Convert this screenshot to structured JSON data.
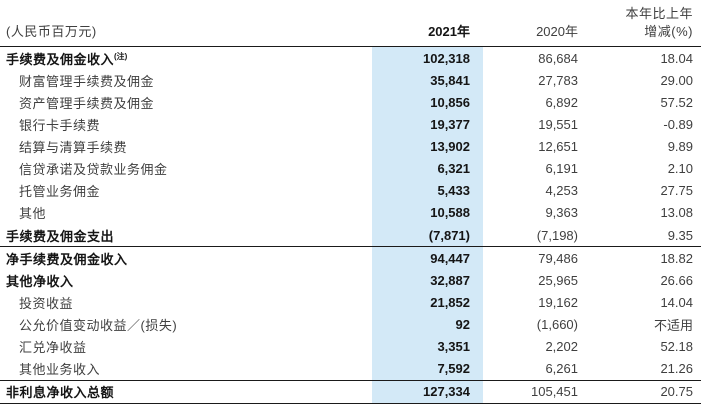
{
  "page": {
    "unit_label": "(人民币百万元)",
    "header": {
      "change_col_line1": "本年比上年",
      "change_col_line2": "增减(%)",
      "col_2021": "2021年",
      "col_2020": "2020年"
    },
    "colors": {
      "highlight_blue": "#d3e9f7",
      "rule_black": "#1a1a1a",
      "text_regular": "#3f3f3f",
      "text_bold": "#151515"
    },
    "table": {
      "rows": [
        {
          "label": "手续费及佣金收入",
          "note": "(注)",
          "bold": true,
          "indent": false,
          "v2021": "102,318",
          "v2020": "86,684",
          "change": "18.04",
          "rule_after": false
        },
        {
          "label": "财富管理手续费及佣金",
          "bold": false,
          "indent": true,
          "v2021": "35,841",
          "v2020": "27,783",
          "change": "29.00",
          "rule_after": false
        },
        {
          "label": "资产管理手续费及佣金",
          "bold": false,
          "indent": true,
          "v2021": "10,856",
          "v2020": "6,892",
          "change": "57.52",
          "rule_after": false
        },
        {
          "label": "银行卡手续费",
          "bold": false,
          "indent": true,
          "v2021": "19,377",
          "v2020": "19,551",
          "change": "-0.89",
          "rule_after": false
        },
        {
          "label": "结算与清算手续费",
          "bold": false,
          "indent": true,
          "v2021": "13,902",
          "v2020": "12,651",
          "change": "9.89",
          "rule_after": false
        },
        {
          "label": "信贷承诺及贷款业务佣金",
          "bold": false,
          "indent": true,
          "v2021": "6,321",
          "v2020": "6,191",
          "change": "2.10",
          "rule_after": false
        },
        {
          "label": "托管业务佣金",
          "bold": false,
          "indent": true,
          "v2021": "5,433",
          "v2020": "4,253",
          "change": "27.75",
          "rule_after": false
        },
        {
          "label": "其他",
          "bold": false,
          "indent": true,
          "v2021": "10,588",
          "v2020": "9,363",
          "change": "13.08",
          "rule_after": false
        },
        {
          "label": "手续费及佣金支出",
          "bold": true,
          "indent": false,
          "v2021": "(7,871)",
          "v2020": "(7,198)",
          "change": "9.35",
          "rule_after": true
        },
        {
          "label": "净手续费及佣金收入",
          "bold": true,
          "indent": false,
          "v2021": "94,447",
          "v2020": "79,486",
          "change": "18.82",
          "rule_after": false
        },
        {
          "label": "其他净收入",
          "bold": true,
          "indent": false,
          "v2021": "32,887",
          "v2020": "25,965",
          "change": "26.66",
          "rule_after": false
        },
        {
          "label": "投资收益",
          "bold": false,
          "indent": true,
          "v2021": "21,852",
          "v2020": "19,162",
          "change": "14.04",
          "rule_after": false
        },
        {
          "label": "公允价值变动收益／(损失)",
          "bold": false,
          "indent": true,
          "v2021": "92",
          "v2020": "(1,660)",
          "change": "不适用",
          "rule_after": false
        },
        {
          "label": "汇兑净收益",
          "bold": false,
          "indent": true,
          "v2021": "3,351",
          "v2020": "2,202",
          "change": "52.18",
          "rule_after": false
        },
        {
          "label": "其他业务收入",
          "bold": false,
          "indent": true,
          "v2021": "7,592",
          "v2020": "6,261",
          "change": "21.26",
          "rule_after": true
        },
        {
          "label": "非利息净收入总额",
          "bold": true,
          "indent": false,
          "v2021": "127,334",
          "v2020": "105,451",
          "change": "20.75",
          "rule_after": false
        }
      ]
    }
  }
}
